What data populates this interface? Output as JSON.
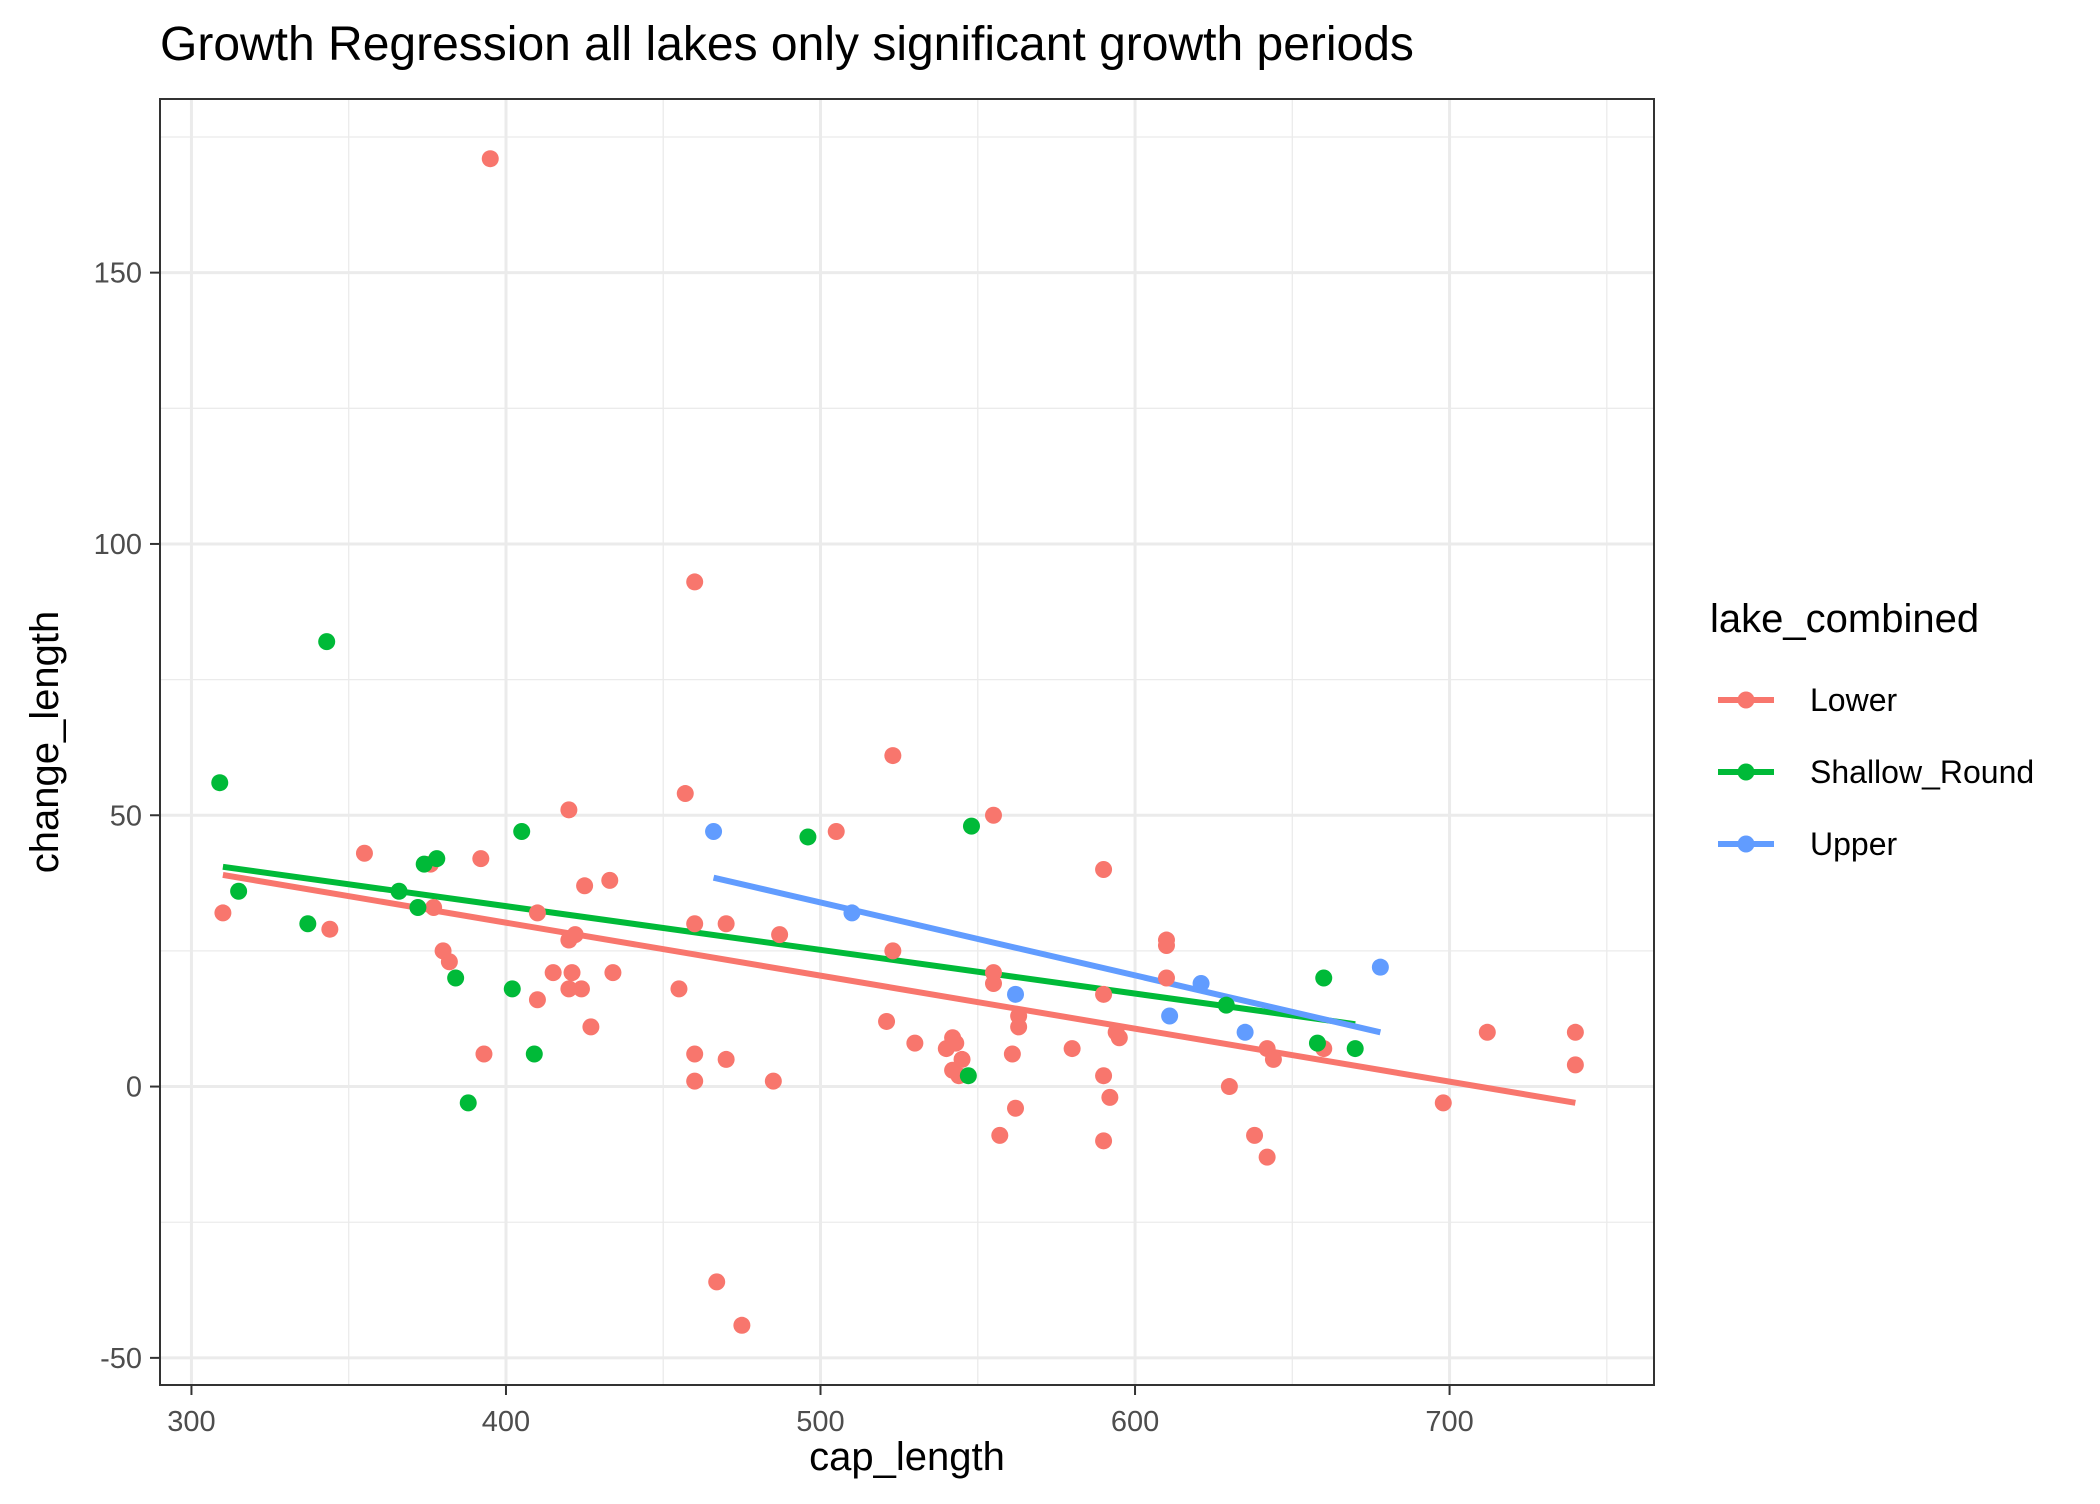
{
  "chart_data": {
    "type": "scatter",
    "title": "Growth Regression all lakes only significant growth periods",
    "xlabel": "cap_length",
    "ylabel": "change_length",
    "xlim": [
      290,
      765
    ],
    "ylim": [
      -55,
      182
    ],
    "x_ticks": [
      300,
      400,
      500,
      600,
      700
    ],
    "x_tick_labels": [
      "300",
      "400",
      "500",
      "600",
      "700"
    ],
    "y_ticks": [
      -50,
      0,
      50,
      100,
      150
    ],
    "y_tick_labels": [
      "-50",
      "0",
      "50",
      "100",
      "150"
    ],
    "grid": true,
    "legend": {
      "title": "lake_combined",
      "position": "right"
    },
    "series": [
      {
        "name": "Lower",
        "color": "#F8766D",
        "regression": {
          "x": [
            310,
            740
          ],
          "y": [
            39,
            -3
          ]
        },
        "points": [
          [
            310,
            32
          ],
          [
            344,
            29
          ],
          [
            355,
            43
          ],
          [
            376,
            41
          ],
          [
            377,
            33
          ],
          [
            380,
            25
          ],
          [
            382,
            23
          ],
          [
            392,
            42
          ],
          [
            393,
            6
          ],
          [
            395,
            171
          ],
          [
            410,
            32
          ],
          [
            410,
            16
          ],
          [
            415,
            21
          ],
          [
            420,
            51
          ],
          [
            420,
            27
          ],
          [
            420,
            18
          ],
          [
            421,
            21
          ],
          [
            422,
            28
          ],
          [
            424,
            18
          ],
          [
            425,
            37
          ],
          [
            427,
            11
          ],
          [
            433,
            38
          ],
          [
            434,
            21
          ],
          [
            455,
            18
          ],
          [
            457,
            54
          ],
          [
            460,
            93
          ],
          [
            460,
            30
          ],
          [
            460,
            6
          ],
          [
            460,
            1
          ],
          [
            467,
            -36
          ],
          [
            470,
            30
          ],
          [
            470,
            5
          ],
          [
            475,
            -44
          ],
          [
            485,
            1
          ],
          [
            487,
            28
          ],
          [
            505,
            47
          ],
          [
            521,
            12
          ],
          [
            523,
            61
          ],
          [
            523,
            25
          ],
          [
            530,
            8
          ],
          [
            540,
            7
          ],
          [
            542,
            9
          ],
          [
            542,
            3
          ],
          [
            543,
            8
          ],
          [
            544,
            2
          ],
          [
            545,
            5
          ],
          [
            555,
            50
          ],
          [
            555,
            21
          ],
          [
            555,
            19
          ],
          [
            557,
            -9
          ],
          [
            561,
            6
          ],
          [
            562,
            -4
          ],
          [
            563,
            13
          ],
          [
            563,
            11
          ],
          [
            580,
            7
          ],
          [
            590,
            40
          ],
          [
            590,
            17
          ],
          [
            590,
            2
          ],
          [
            590,
            -10
          ],
          [
            592,
            -2
          ],
          [
            594,
            10
          ],
          [
            595,
            9
          ],
          [
            610,
            27
          ],
          [
            610,
            26
          ],
          [
            610,
            20
          ],
          [
            630,
            0
          ],
          [
            638,
            -9
          ],
          [
            642,
            7
          ],
          [
            642,
            -13
          ],
          [
            644,
            5
          ],
          [
            660,
            7
          ],
          [
            698,
            -3
          ],
          [
            712,
            10
          ],
          [
            740,
            10
          ],
          [
            740,
            4
          ]
        ]
      },
      {
        "name": "Shallow_Round",
        "color": "#00BA38",
        "regression": {
          "x": [
            310,
            670
          ],
          "y": [
            40.5,
            11.5
          ]
        },
        "points": [
          [
            309,
            56
          ],
          [
            315,
            36
          ],
          [
            337,
            30
          ],
          [
            343,
            82
          ],
          [
            366,
            36
          ],
          [
            372,
            33
          ],
          [
            374,
            41
          ],
          [
            378,
            42
          ],
          [
            384,
            20
          ],
          [
            388,
            -3
          ],
          [
            402,
            18
          ],
          [
            405,
            47
          ],
          [
            409,
            6
          ],
          [
            496,
            46
          ],
          [
            547,
            2
          ],
          [
            548,
            48
          ],
          [
            629,
            15
          ],
          [
            658,
            8
          ],
          [
            660,
            20
          ],
          [
            670,
            7
          ]
        ]
      },
      {
        "name": "Upper",
        "color": "#619CFF",
        "regression": {
          "x": [
            466,
            678
          ],
          "y": [
            38.5,
            10
          ]
        },
        "points": [
          [
            466,
            47
          ],
          [
            510,
            32
          ],
          [
            562,
            17
          ],
          [
            611,
            13
          ],
          [
            621,
            19
          ],
          [
            635,
            10
          ],
          [
            678,
            22
          ]
        ]
      }
    ]
  }
}
